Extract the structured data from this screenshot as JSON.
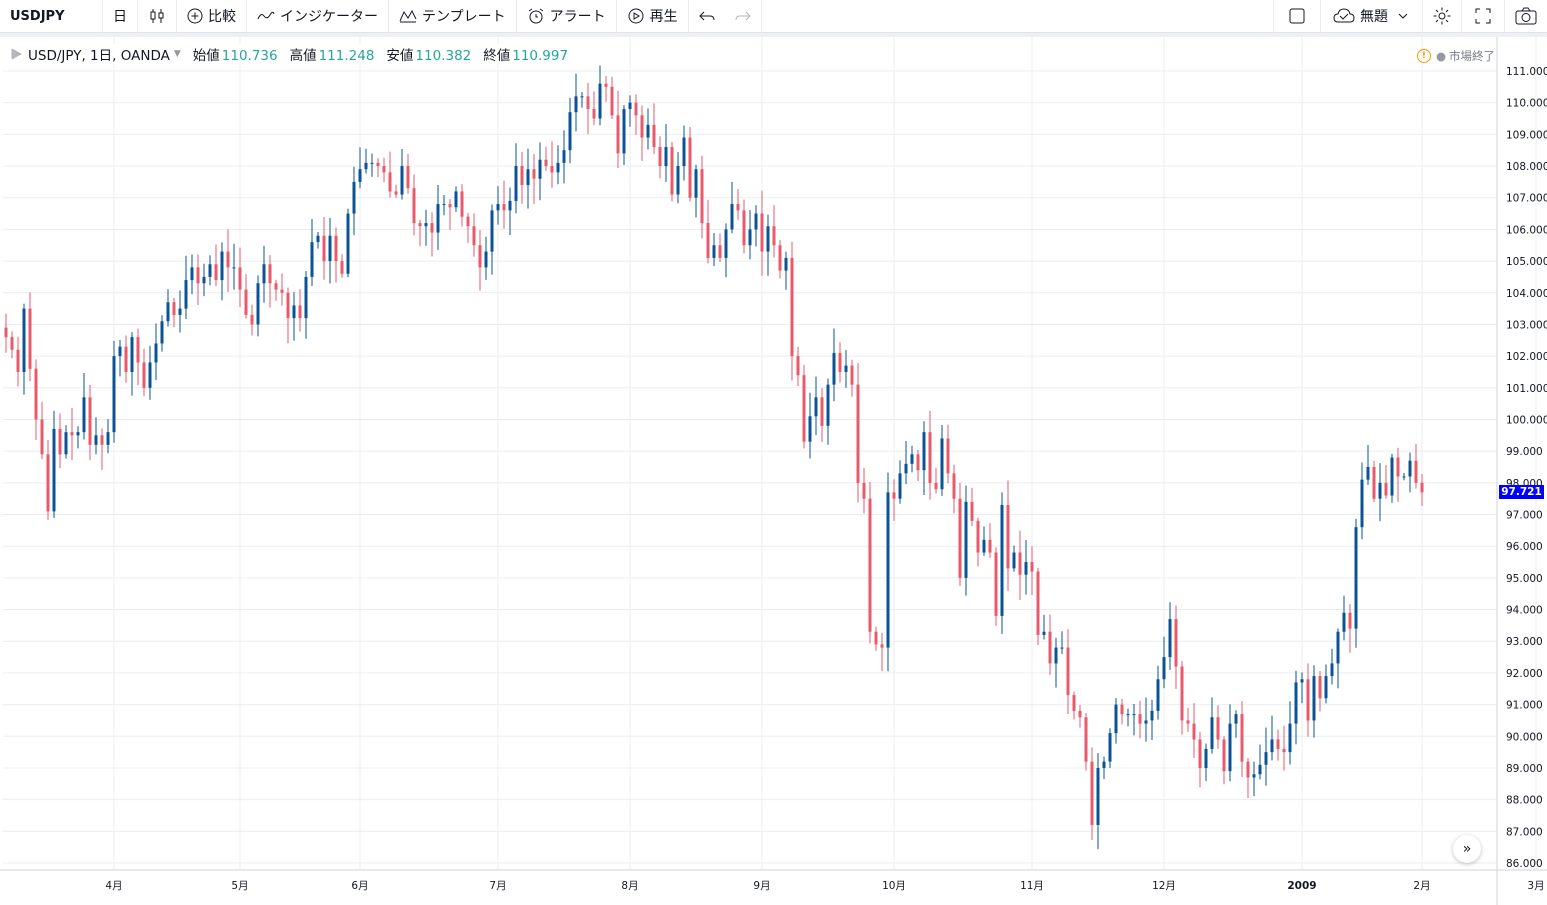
{
  "toolbar": {
    "symbol": "USDJPY",
    "interval": "日",
    "compare_label": "比較",
    "indicators_label": "インジケーター",
    "templates_label": "テンプレート",
    "alert_label": "アラート",
    "replay_label": "再生",
    "layout_label": "無題"
  },
  "legend": {
    "title": "USD/JPY, 1日, OANDA",
    "open_label": "始値",
    "open_value": "110.736",
    "high_label": "高値",
    "high_value": "111.248",
    "low_label": "安値",
    "low_value": "110.382",
    "close_label": "終値",
    "close_value": "110.997"
  },
  "status": {
    "market": "市場終了"
  },
  "colors": {
    "up": "#0b5394",
    "down": "#e8596b",
    "grid": "#e9edf2",
    "price_badge": "#0000ff"
  },
  "chart_data": {
    "type": "candlestick",
    "ylim": [
      85.7,
      111.5
    ],
    "y_ticks": [
      "111.000",
      "110.000",
      "109.000",
      "108.000",
      "107.000",
      "106.000",
      "105.000",
      "104.000",
      "103.000",
      "102.000",
      "101.000",
      "100.000",
      "99.000",
      "98.000",
      "97.000",
      "96.000",
      "95.000",
      "94.000",
      "93.000",
      "92.000",
      "91.000",
      "90.000",
      "89.000",
      "88.000",
      "87.000",
      "86.000"
    ],
    "x_ticks": [
      "4月",
      "5月",
      "6月",
      "7月",
      "8月",
      "9月",
      "10月",
      "11月",
      "12月",
      "2009",
      "2月",
      "3月"
    ],
    "x_tick_index": [
      18,
      39,
      59,
      82,
      104,
      126,
      148,
      171,
      193,
      216,
      236,
      255
    ],
    "last_price": "97.721",
    "closes": [
      102.6,
      102.2,
      101.5,
      103.5,
      101.6,
      100.0,
      98.9,
      97.1,
      99.7,
      98.9,
      99.6,
      99.5,
      99.6,
      100.7,
      99.2,
      99.5,
      99.2,
      99.6,
      102.0,
      102.3,
      101.5,
      102.6,
      101.8,
      101.0,
      101.8,
      102.4,
      103.1,
      103.7,
      103.3,
      103.5,
      104.4,
      104.8,
      104.3,
      104.5,
      104.9,
      104.4,
      105.3,
      104.8,
      104.8,
      104.1,
      103.3,
      103.0,
      104.3,
      104.9,
      104.3,
      104.1,
      104.0,
      103.2,
      103.6,
      103.2,
      104.5,
      105.6,
      105.8,
      105.0,
      105.8,
      105.0,
      104.6,
      106.5,
      107.5,
      107.9,
      108.1,
      108.1,
      108.0,
      107.8,
      107.2,
      107.1,
      108.0,
      107.3,
      106.2,
      106.1,
      106.2,
      105.9,
      106.8,
      106.8,
      106.7,
      107.2,
      106.4,
      106.1,
      105.5,
      104.8,
      105.3,
      106.6,
      106.8,
      106.6,
      106.9,
      108.0,
      107.4,
      107.9,
      107.6,
      108.2,
      108.0,
      107.8,
      108.1,
      108.5,
      109.7,
      110.2,
      110.2,
      109.8,
      109.5,
      110.6,
      110.5,
      109.6,
      108.4,
      109.8,
      110.0,
      109.6,
      108.9,
      109.3,
      108.6,
      108.0,
      108.6,
      107.1,
      108.0,
      108.9,
      107.0,
      107.9,
      106.2,
      105.1,
      105.5,
      105.1,
      106.0,
      106.8,
      106.6,
      105.5,
      106.0,
      106.5,
      105.3,
      106.1,
      105.5,
      104.7,
      105.1,
      102.0,
      101.4,
      99.3,
      100.1,
      100.7,
      99.8,
      101.1,
      102.1,
      101.5,
      101.7,
      101.1,
      98.0,
      97.5,
      93.3,
      92.9,
      92.8,
      97.7,
      97.5,
      98.3,
      98.6,
      98.9,
      98.4,
      99.6,
      98.0,
      97.8,
      99.4,
      98.3,
      97.5,
      95.0,
      97.4,
      96.8,
      95.8,
      96.2,
      95.8,
      93.8,
      97.3,
      95.3,
      95.8,
      95.1,
      95.5,
      95.2,
      93.2,
      93.3,
      92.3,
      92.8,
      92.8,
      91.3,
      90.8,
      90.6,
      89.2,
      87.2,
      89.0,
      89.2,
      90.1,
      91.0,
      90.7,
      90.7,
      90.7,
      90.4,
      90.5,
      90.8,
      91.8,
      92.5,
      93.7,
      92.2,
      90.5,
      90.4,
      89.9,
      89.0,
      89.6,
      90.6,
      89.9,
      88.9,
      90.4,
      90.7,
      89.2,
      88.7,
      88.8,
      89.1,
      89.5,
      89.9,
      89.6,
      89.5,
      90.4,
      91.7,
      91.8,
      90.5,
      91.9,
      91.2,
      91.9,
      92.3,
      93.3,
      93.9,
      93.4,
      96.6,
      98.1,
      98.5,
      97.5,
      98.0,
      97.6,
      98.8,
      98.2,
      98.2,
      98.7,
      98.0,
      97.7
    ],
    "open": 102.9
  }
}
